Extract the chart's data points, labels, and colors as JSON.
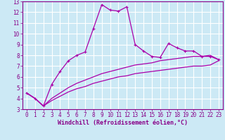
{
  "xlabel": "Windchill (Refroidissement éolien,°C)",
  "xlim": [
    -0.5,
    23.5
  ],
  "ylim": [
    3,
    13
  ],
  "yticks": [
    3,
    4,
    5,
    6,
    7,
    8,
    9,
    10,
    11,
    12,
    13
  ],
  "xticks": [
    0,
    1,
    2,
    3,
    4,
    5,
    6,
    7,
    8,
    9,
    10,
    11,
    12,
    13,
    14,
    15,
    16,
    17,
    18,
    19,
    20,
    21,
    22,
    23
  ],
  "background_color": "#cce9f5",
  "grid_color": "#ffffff",
  "line_color": "#aa00aa",
  "curve1_x": [
    0,
    1,
    2,
    3,
    4,
    5,
    6,
    7,
    8,
    9,
    10,
    11,
    12,
    13,
    14,
    15,
    16,
    17,
    18,
    19,
    20,
    21,
    22,
    23
  ],
  "curve1_y": [
    4.5,
    4.0,
    3.3,
    5.3,
    6.5,
    7.5,
    8.0,
    8.3,
    10.5,
    12.7,
    12.2,
    12.1,
    12.5,
    9.0,
    8.4,
    7.9,
    7.8,
    9.1,
    8.7,
    8.4,
    8.4,
    7.9,
    7.9,
    7.6
  ],
  "curve2_x": [
    0,
    1,
    2,
    3,
    4,
    5,
    6,
    7,
    8,
    9,
    10,
    11,
    12,
    13,
    14,
    15,
    16,
    17,
    18,
    19,
    20,
    21,
    22,
    23
  ],
  "curve2_y": [
    4.5,
    4.0,
    3.3,
    4.0,
    4.5,
    5.0,
    5.4,
    5.7,
    6.0,
    6.3,
    6.5,
    6.7,
    6.9,
    7.1,
    7.2,
    7.3,
    7.5,
    7.6,
    7.7,
    7.8,
    7.9,
    7.9,
    8.0,
    7.6
  ],
  "curve3_x": [
    0,
    1,
    2,
    3,
    4,
    5,
    6,
    7,
    8,
    9,
    10,
    11,
    12,
    13,
    14,
    15,
    16,
    17,
    18,
    19,
    20,
    21,
    22,
    23
  ],
  "curve3_y": [
    4.5,
    4.0,
    3.3,
    3.8,
    4.2,
    4.6,
    4.9,
    5.1,
    5.4,
    5.6,
    5.8,
    6.0,
    6.1,
    6.3,
    6.4,
    6.5,
    6.6,
    6.7,
    6.8,
    6.9,
    7.0,
    7.0,
    7.1,
    7.5
  ],
  "tick_fontsize": 5.5,
  "xlabel_fontsize": 6.0,
  "marker_size": 2.5,
  "line_width": 0.9
}
